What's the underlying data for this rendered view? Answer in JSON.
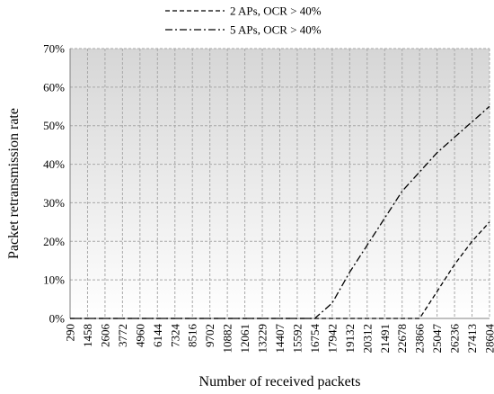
{
  "chart_data": {
    "type": "line",
    "title": "",
    "xlabel": "Number of received packets",
    "ylabel": "Packet retransmission rate",
    "categories": [
      "290",
      "1458",
      "2606",
      "3772",
      "4960",
      "6144",
      "7324",
      "8516",
      "9702",
      "10882",
      "12061",
      "13229",
      "14407",
      "15592",
      "16754",
      "17942",
      "19132",
      "20312",
      "21491",
      "22678",
      "23866",
      "25047",
      "26236",
      "27413",
      "28604"
    ],
    "ytick_labels": [
      "0%",
      "10%",
      "20%",
      "30%",
      "40%",
      "50%",
      "60%",
      "70%"
    ],
    "ylim": [
      0,
      70
    ],
    "grid": true,
    "legend_position": "top",
    "series": [
      {
        "name": "2 APs, OCR > 40%",
        "style": "dashed",
        "color": "#000000",
        "values": [
          0,
          0,
          0,
          0,
          0,
          0,
          0,
          0,
          0,
          0,
          0,
          0,
          0,
          0,
          0,
          0,
          0,
          0,
          0,
          0,
          0,
          7,
          14,
          20,
          25
        ]
      },
      {
        "name": "5 APs, OCR > 40%",
        "style": "dashdot",
        "color": "#000000",
        "values": [
          0,
          0,
          0,
          0,
          0,
          0,
          0,
          0,
          0,
          0,
          0,
          0,
          0,
          0,
          0,
          4,
          12,
          19,
          26,
          33,
          38,
          43,
          47,
          51,
          55
        ]
      }
    ]
  }
}
